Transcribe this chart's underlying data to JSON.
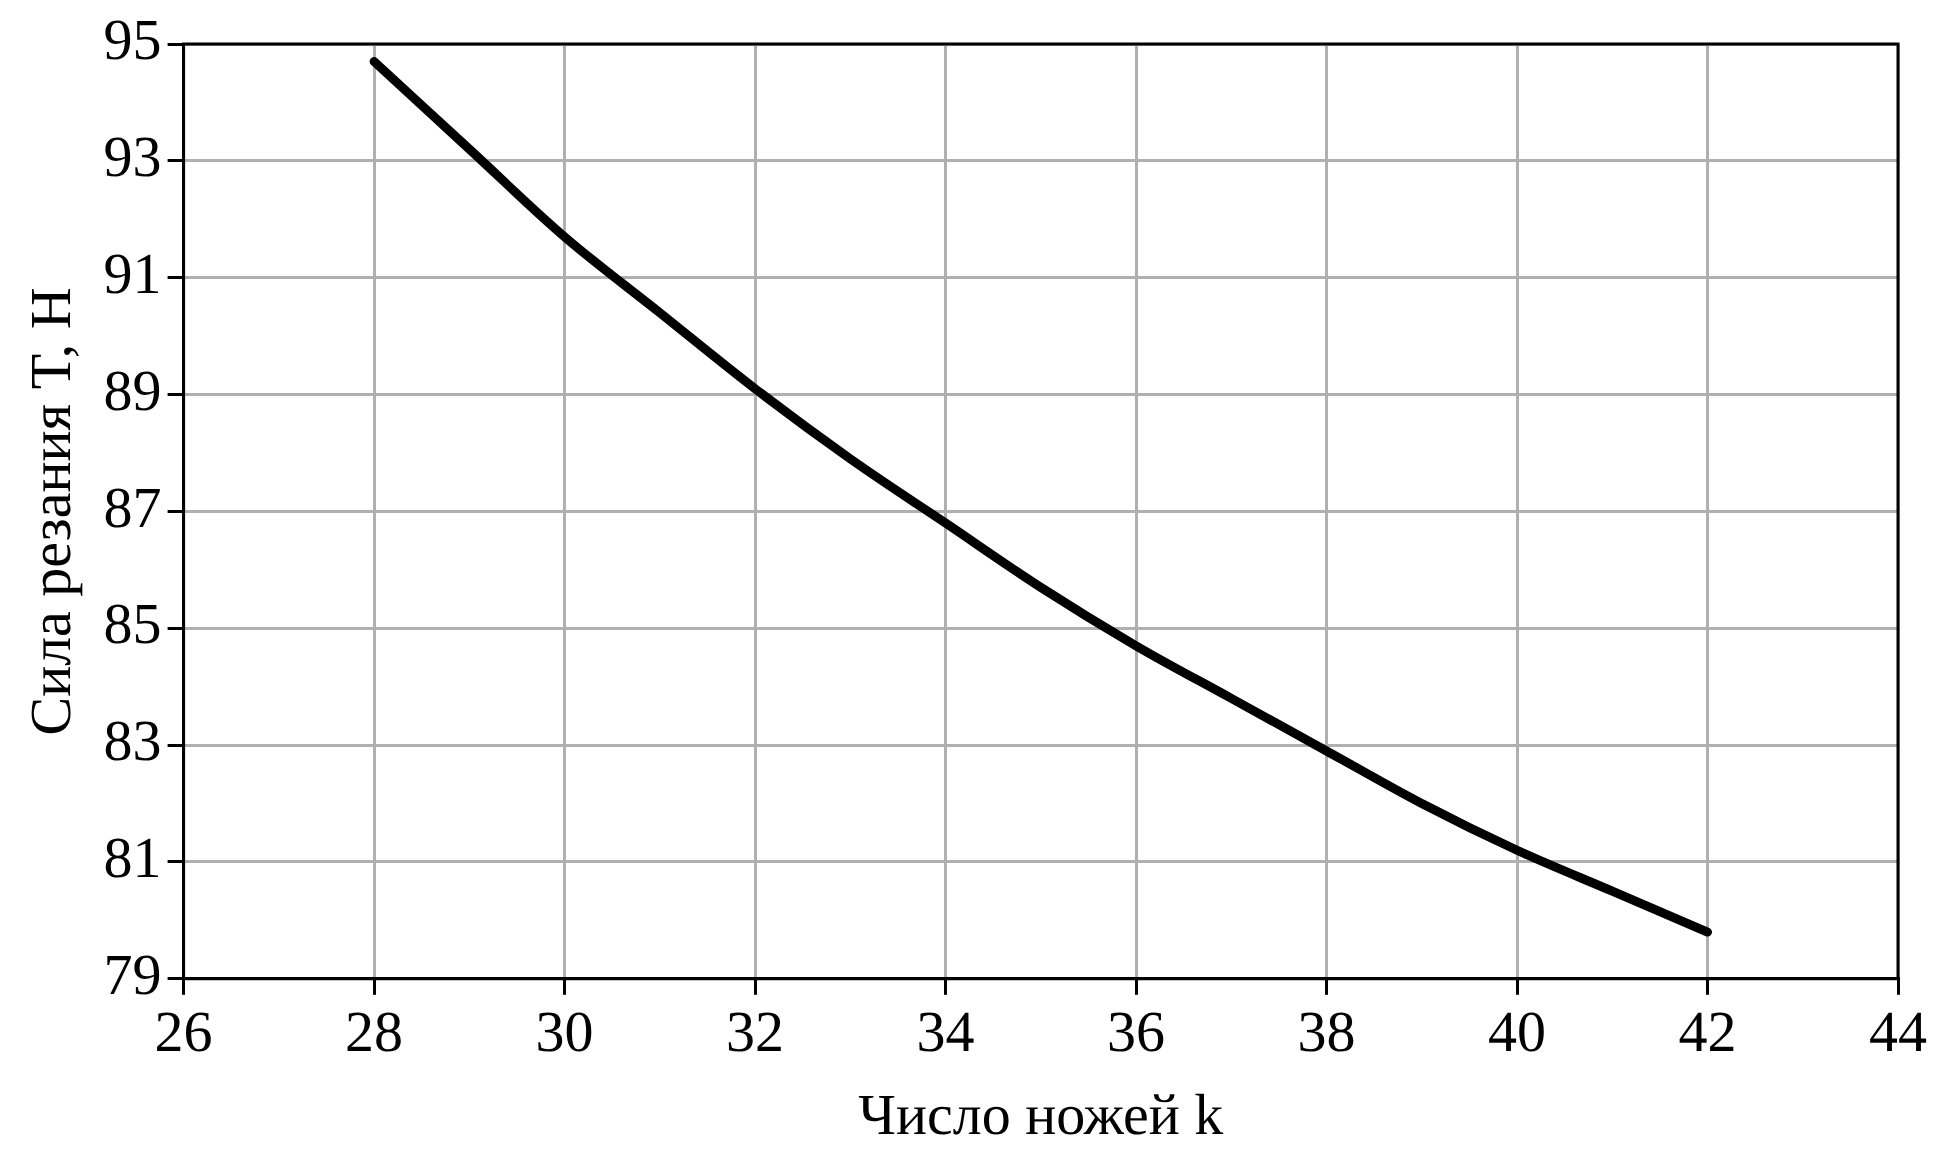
{
  "chart_data": {
    "type": "line",
    "xlabel": "Число ножей k",
    "ylabel": "Сила резания T, Н",
    "x": [
      28,
      29,
      30,
      31,
      32,
      33,
      34,
      35,
      36,
      37,
      38,
      39,
      40,
      41,
      42
    ],
    "series": [
      {
        "color": "#000000",
        "values": [
          94.7,
          93.2,
          91.7,
          90.4,
          89.1,
          87.9,
          86.8,
          85.7,
          84.7,
          83.8,
          82.9,
          82.0,
          81.2,
          80.5,
          79.8
        ]
      }
    ],
    "xlim": [
      26,
      44
    ],
    "xticks": [
      26,
      28,
      30,
      32,
      34,
      36,
      38,
      40,
      42,
      44
    ],
    "ylim": [
      79,
      95
    ],
    "yticks": [
      79,
      81,
      83,
      85,
      87,
      89,
      91,
      93,
      95
    ],
    "grid": true,
    "legend": false,
    "marker": "none",
    "line_style": "solid"
  }
}
